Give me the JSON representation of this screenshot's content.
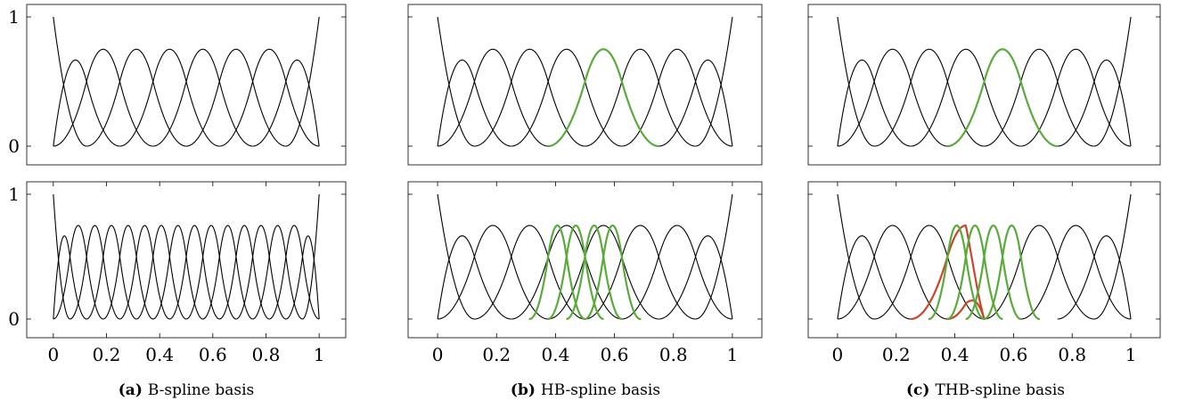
{
  "colors": {
    "black": "#000000",
    "green": "#5aaa3c",
    "red": "#c8472a"
  },
  "chart_data": [
    {
      "type": "line",
      "title": "",
      "degree": 2,
      "xlim": [
        -0.1,
        1.1
      ],
      "ylim": [
        0,
        1
      ],
      "x_ticks": [],
      "x_tick_labels": [],
      "y_ticks": [
        0,
        1
      ],
      "y_tick_labels": [
        "0",
        "1"
      ],
      "grid": false,
      "knots": [
        0,
        0,
        0,
        0.125,
        0.25,
        0.375,
        0.5,
        0.625,
        0.75,
        0.875,
        1,
        1,
        1
      ],
      "series": [
        {
          "color": "#000000",
          "basis_indices": [
            0,
            1,
            2,
            3,
            4,
            5,
            6,
            7,
            8,
            9
          ]
        }
      ]
    },
    {
      "type": "line",
      "title": "",
      "degree": 2,
      "xlim": [
        -0.1,
        1.1
      ],
      "ylim": [
        0,
        1
      ],
      "x_ticks": [
        0,
        0.2,
        0.4,
        0.6,
        0.8,
        1
      ],
      "x_tick_labels": [
        "0",
        "0.2",
        "0.4",
        "0.6",
        "0.8",
        "1"
      ],
      "y_ticks": [
        0,
        1
      ],
      "y_tick_labels": [
        "0",
        "1"
      ],
      "grid": false,
      "knots": [
        0,
        0,
        0,
        0.0625,
        0.125,
        0.1875,
        0.25,
        0.3125,
        0.375,
        0.4375,
        0.5,
        0.5625,
        0.625,
        0.6875,
        0.75,
        0.8125,
        0.875,
        0.9375,
        1,
        1,
        1
      ],
      "series": [
        {
          "color": "#000000",
          "basis_indices": [
            0,
            1,
            2,
            3,
            4,
            5,
            6,
            7,
            8,
            9,
            10,
            11,
            12,
            13,
            14,
            15,
            16,
            17
          ]
        }
      ]
    },
    {
      "type": "line",
      "title": "",
      "degree": 2,
      "xlim": [
        -0.1,
        1.1
      ],
      "ylim": [
        0,
        1
      ],
      "x_ticks": [],
      "x_tick_labels": [],
      "y_ticks": [
        0,
        1
      ],
      "y_tick_labels": [],
      "grid": false,
      "knots": [
        0,
        0,
        0,
        0.125,
        0.25,
        0.375,
        0.5,
        0.625,
        0.75,
        0.875,
        1,
        1,
        1
      ],
      "series": [
        {
          "color": "#000000",
          "basis_indices": [
            0,
            1,
            2,
            3,
            4,
            6,
            7,
            8,
            9
          ]
        },
        {
          "color": "#5aaa3c",
          "basis_indices": [
            5
          ]
        }
      ]
    },
    {
      "type": "line",
      "title": "",
      "degree": 2,
      "xlim": [
        -0.1,
        1.1
      ],
      "ylim": [
        0,
        1
      ],
      "x_ticks": [
        0,
        0.2,
        0.4,
        0.6,
        0.8,
        1
      ],
      "x_tick_labels": [
        "0",
        "0.2",
        "0.4",
        "0.6",
        "0.8",
        "1"
      ],
      "y_ticks": [
        0,
        1
      ],
      "y_tick_labels": [],
      "grid": false,
      "knots": [
        0,
        0,
        0,
        0.125,
        0.25,
        0.375,
        0.5,
        0.625,
        0.75,
        0.875,
        1,
        1,
        1
      ],
      "fine_knots": [
        0,
        0,
        0,
        0.0625,
        0.125,
        0.1875,
        0.25,
        0.3125,
        0.375,
        0.4375,
        0.5,
        0.5625,
        0.625,
        0.6875,
        0.75,
        0.8125,
        0.875,
        0.9375,
        1,
        1,
        1
      ],
      "series": [
        {
          "color": "#000000",
          "basis_indices": [
            0,
            1,
            2,
            3,
            4,
            5,
            6,
            7,
            8,
            9
          ]
        },
        {
          "color": "#5aaa3c",
          "fine_basis_indices": [
            7,
            8,
            9,
            10
          ]
        }
      ]
    },
    {
      "type": "line",
      "title": "",
      "degree": 2,
      "xlim": [
        -0.1,
        1.1
      ],
      "ylim": [
        0,
        1
      ],
      "x_ticks": [],
      "x_tick_labels": [],
      "y_ticks": [
        0,
        1
      ],
      "y_tick_labels": [],
      "grid": false,
      "knots": [
        0,
        0,
        0,
        0.125,
        0.25,
        0.375,
        0.5,
        0.625,
        0.75,
        0.875,
        1,
        1,
        1
      ],
      "series": [
        {
          "color": "#000000",
          "basis_indices": [
            0,
            1,
            2,
            3,
            4,
            6,
            7,
            8,
            9
          ]
        },
        {
          "color": "#5aaa3c",
          "basis_indices": [
            5
          ]
        }
      ]
    },
    {
      "type": "line",
      "title": "",
      "degree": 2,
      "xlim": [
        -0.1,
        1.1
      ],
      "ylim": [
        0,
        1
      ],
      "x_ticks": [
        0,
        0.2,
        0.4,
        0.6,
        0.8,
        1
      ],
      "x_tick_labels": [
        "0",
        "0.2",
        "0.4",
        "0.6",
        "0.8",
        "1"
      ],
      "y_ticks": [
        0,
        1
      ],
      "y_tick_labels": [],
      "grid": false,
      "knots": [
        0,
        0,
        0,
        0.125,
        0.25,
        0.375,
        0.5,
        0.625,
        0.75,
        0.875,
        1,
        1,
        1
      ],
      "fine_knots": [
        0,
        0,
        0,
        0.0625,
        0.125,
        0.1875,
        0.25,
        0.3125,
        0.375,
        0.4375,
        0.5,
        0.5625,
        0.625,
        0.6875,
        0.75,
        0.8125,
        0.875,
        0.9375,
        1,
        1,
        1
      ],
      "series": [
        {
          "color": "#000000",
          "basis_indices": [
            0,
            1,
            2,
            3,
            6,
            7,
            8,
            9
          ]
        },
        {
          "color": "#c8472a",
          "truncated_basis_indices": [
            4,
            5
          ]
        },
        {
          "color": "#5aaa3c",
          "fine_basis_indices": [
            7,
            8,
            9,
            10
          ]
        }
      ]
    }
  ],
  "captions": [
    {
      "tag": "(a)",
      "text": "B-spline basis"
    },
    {
      "tag": "(b)",
      "text": "HB-spline basis"
    },
    {
      "tag": "(c)",
      "text": "THB-spline basis"
    }
  ]
}
